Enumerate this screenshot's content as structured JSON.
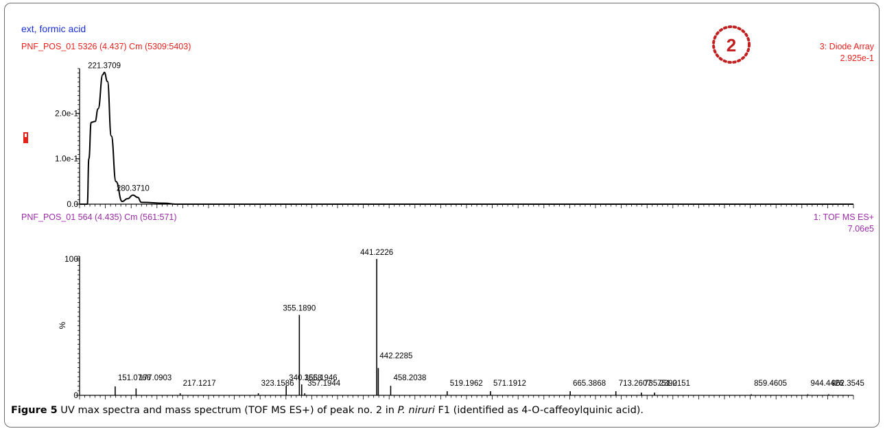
{
  "badge": {
    "text": "2",
    "color": "#c0201f"
  },
  "colors": {
    "uv_text": "#e8201c",
    "ms_text": "#9a2aa6",
    "blue_text": "#1a2fd6",
    "axis": "#000000",
    "badge": "#c0201f"
  },
  "uv_panel": {
    "header_title": "ext, formic acid",
    "trace_label": "PNF_POS_01 5326 (4.437) Cm (5309:5403)",
    "detector": "3: Diode Array",
    "intensity": "2.925e-1"
  },
  "ms_panel": {
    "trace_label": "PNF_POS_01 564 (4.435) Cm (561:571)",
    "detector": "1: TOF MS ES+",
    "intensity": "7.06e5"
  },
  "caption": {
    "figure_label": "Figure 5",
    "text_before": " UV max spectra and mass spectrum (TOF MS ES+) of peak no. 2 in ",
    "species": "P. niruri",
    "text_after": " F1 (identified as 4-O-caffeoylquinic acid)."
  },
  "chart_data": [
    {
      "type": "line",
      "ylim": [
        0,
        0.2925
      ],
      "yticks": [
        "0.0",
        "1.0e-1",
        "2.0e-1"
      ],
      "ytick_values": [
        0.0,
        0.1,
        0.2
      ],
      "points": [
        [
          0.0,
          0.0
        ],
        [
          0.01,
          0.0
        ],
        [
          0.012,
          0.1
        ],
        [
          0.015,
          0.18
        ],
        [
          0.02,
          0.182
        ],
        [
          0.024,
          0.21
        ],
        [
          0.03,
          0.285
        ],
        [
          0.032,
          0.29
        ],
        [
          0.036,
          0.27
        ],
        [
          0.041,
          0.15
        ],
        [
          0.047,
          0.05
        ],
        [
          0.055,
          0.006
        ],
        [
          0.062,
          0.012
        ],
        [
          0.069,
          0.02
        ],
        [
          0.075,
          0.015
        ],
        [
          0.08,
          0.004
        ],
        [
          0.11,
          0.002
        ],
        [
          0.125,
          0.0
        ],
        [
          1.0,
          0.0
        ]
      ],
      "annotations": [
        {
          "label": "221.3709",
          "x": 0.032,
          "y": 0.29
        },
        {
          "label": "280.3710",
          "x": 0.069,
          "y": 0.02
        }
      ]
    },
    {
      "type": "bar",
      "ylabel": "%",
      "ylim": [
        0,
        100
      ],
      "yticks": [
        "0",
        "100"
      ],
      "ytick_values": [
        0,
        100
      ],
      "peaks": [
        {
          "x": 0.046,
          "y": 6.5,
          "label": "151.0766"
        },
        {
          "x": 0.073,
          "y": 5.0,
          "label": "177.0903"
        },
        {
          "x": 0.13,
          "y": 1.5,
          "label": "217.1217"
        },
        {
          "x": 0.231,
          "y": 1.5,
          "label": "323.1586"
        },
        {
          "x": 0.267,
          "y": 7.0,
          "label": "340.1658"
        },
        {
          "x": 0.284,
          "y": 59.0,
          "label": "355.1890"
        },
        {
          "x": 0.287,
          "y": 8.0,
          "label": "356.1946"
        },
        {
          "x": 0.291,
          "y": 1.5,
          "label": "357.1944"
        },
        {
          "x": 0.384,
          "y": 100.0,
          "label": "441.2226"
        },
        {
          "x": 0.386,
          "y": 20.0,
          "label": "442.2285"
        },
        {
          "x": 0.402,
          "y": 7.0,
          "label": "458.2038"
        },
        {
          "x": 0.475,
          "y": 3.0,
          "label": "519.1962"
        },
        {
          "x": 0.531,
          "y": 3.0,
          "label": "571.1912"
        },
        {
          "x": 0.634,
          "y": 3.0,
          "label": "665.3868"
        },
        {
          "x": 0.693,
          "y": 3.0,
          "label": "713.2607"
        },
        {
          "x": 0.726,
          "y": 2.0,
          "label": "735.2390"
        },
        {
          "x": 0.743,
          "y": 2.0,
          "label": "751.2151"
        },
        {
          "x": 0.868,
          "y": 0.5,
          "label": "859.4605"
        },
        {
          "x": 0.941,
          "y": 0.5,
          "label": "944.4426"
        },
        {
          "x": 0.968,
          "y": 0.5,
          "label": "962.3545"
        }
      ]
    }
  ]
}
